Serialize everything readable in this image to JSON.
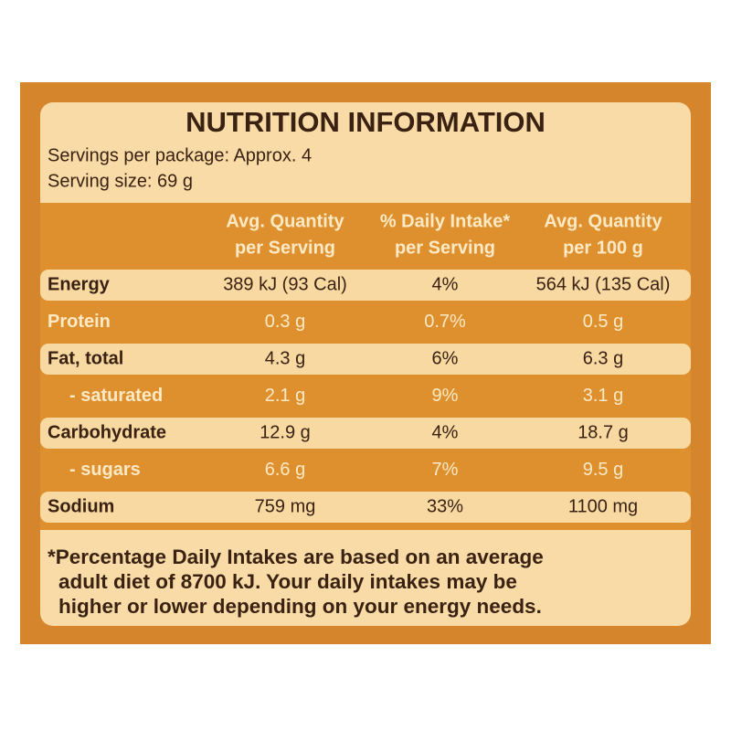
{
  "title": "NUTRITION INFORMATION",
  "servings_per_package": "Servings per package: Approx. 4",
  "serving_size": "Serving size: 69 g",
  "table": {
    "headers": [
      [
        "Avg. Quantity",
        "per Serving"
      ],
      [
        "% Daily Intake*",
        "per Serving"
      ],
      [
        "Avg. Quantity",
        "per 100 g"
      ]
    ],
    "rows": [
      [
        "Energy",
        "389 kJ (93 Cal)",
        "4%",
        "564 kJ (135 Cal)"
      ],
      [
        "Protein",
        "0.3 g",
        "0.7%",
        "0.5 g"
      ],
      [
        "Fat, total",
        "4.3 g",
        "6%",
        "6.3 g"
      ],
      [
        "- saturated",
        "2.1 g",
        "9%",
        "3.1 g"
      ],
      [
        "Carbohydrate",
        "12.9 g",
        "4%",
        "18.7 g"
      ],
      [
        "- sugars",
        "6.6 g",
        "7%",
        "9.5 g"
      ],
      [
        "Sodium",
        "759 mg",
        "33%",
        "1100 mg"
      ]
    ]
  },
  "footnote": [
    "*Percentage Daily Intakes are based on an average",
    "adult diet of 8700 kJ. Your daily intakes may be",
    "higher or lower depending on your energy needs."
  ]
}
